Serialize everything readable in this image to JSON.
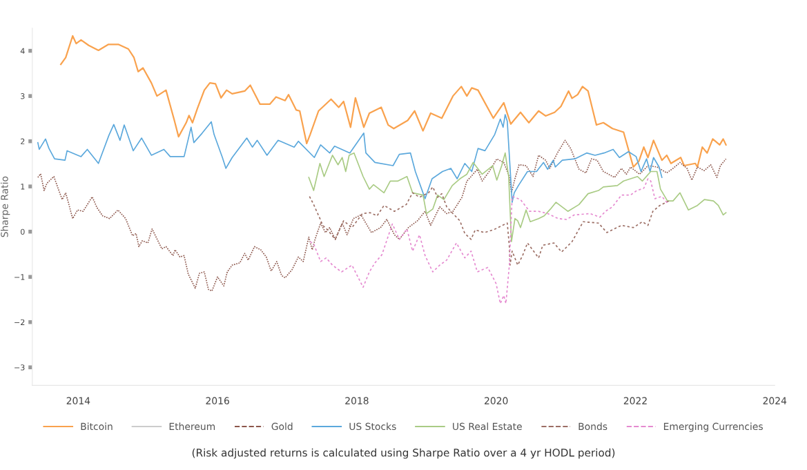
{
  "chart_data": {
    "type": "line",
    "ylabel": "Sharpe Ratio",
    "annotations": [
      "(Risk adjusted returns is calculated using Sharpe Ratio over a 4 yr HODL period)"
    ],
    "xlim": [
      2013.34,
      2024
    ],
    "xticks": [
      2014,
      2016,
      2018,
      2020,
      2022,
      2024
    ],
    "ylim": [
      -3.4,
      4.5
    ],
    "yticks": [
      {
        "value": -3,
        "label": "−3"
      },
      {
        "value": -2,
        "label": "−2"
      },
      {
        "value": -1,
        "label": "−1"
      },
      0,
      1,
      2,
      3,
      4
    ],
    "grid": false,
    "legend": "bottom",
    "marker": "none",
    "series": [
      {
        "name": "Bitcoin",
        "color": "#f9a24e",
        "line_style": "solid",
        "x": [
          2013.75,
          2013.82,
          2013.92,
          2013.97,
          2014.04,
          2014.15,
          2014.29,
          2014.43,
          2014.58,
          2014.72,
          2014.8,
          2014.86,
          2014.93,
          2015.05,
          2015.13,
          2015.26,
          2015.38,
          2015.44,
          2015.55,
          2015.59,
          2015.64,
          2015.71,
          2015.81,
          2015.89,
          2015.97,
          2016.05,
          2016.13,
          2016.21,
          2016.39,
          2016.47,
          2016.61,
          2016.75,
          2016.84,
          2016.97,
          2017.02,
          2017.13,
          2017.18,
          2017.28,
          2017.33,
          2017.45,
          2017.63,
          2017.74,
          2017.81,
          2017.91,
          2017.98,
          2018.1,
          2018.18,
          2018.35,
          2018.45,
          2018.53,
          2018.73,
          2018.83,
          2018.95,
          2019.06,
          2019.22,
          2019.38,
          2019.5,
          2019.58,
          2019.65,
          2019.74,
          2019.96,
          2020.11,
          2020.21,
          2020.35,
          2020.47,
          2020.61,
          2020.71,
          2020.84,
          2020.93,
          2021.04,
          2021.09,
          2021.17,
          2021.24,
          2021.32,
          2021.44,
          2021.54,
          2021.67,
          2021.83,
          2021.97,
          2022.05,
          2022.12,
          2022.18,
          2022.26,
          2022.38,
          2022.45,
          2022.51,
          2022.65,
          2022.7,
          2022.86,
          2022.89,
          2022.96,
          2023.03,
          2023.11,
          2023.21,
          2023.26,
          2023.3
        ],
        "values": [
          3.7,
          3.85,
          4.33,
          4.16,
          4.24,
          4.12,
          4.01,
          4.14,
          4.14,
          4.04,
          3.85,
          3.54,
          3.62,
          3.29,
          3.0,
          3.13,
          2.46,
          2.1,
          2.41,
          2.57,
          2.41,
          2.72,
          3.13,
          3.29,
          3.27,
          2.96,
          3.13,
          3.05,
          3.11,
          3.24,
          2.82,
          2.82,
          2.98,
          2.9,
          3.03,
          2.69,
          2.67,
          1.95,
          2.15,
          2.67,
          2.93,
          2.75,
          2.88,
          2.31,
          2.96,
          2.31,
          2.62,
          2.75,
          2.36,
          2.28,
          2.46,
          2.67,
          2.23,
          2.62,
          2.51,
          3.0,
          3.21,
          3.0,
          3.18,
          3.13,
          2.51,
          2.85,
          2.38,
          2.64,
          2.41,
          2.67,
          2.56,
          2.64,
          2.77,
          3.11,
          2.95,
          3.03,
          3.21,
          3.11,
          2.36,
          2.41,
          2.28,
          2.2,
          1.43,
          1.56,
          1.87,
          1.64,
          2.02,
          1.58,
          1.69,
          1.51,
          1.64,
          1.46,
          1.51,
          1.43,
          1.87,
          1.74,
          2.05,
          1.92,
          2.05,
          1.92
        ]
      },
      {
        "name": "Ethereum",
        "color": "#cccccc",
        "line_style": "solid"
      },
      {
        "name": "Gold",
        "color": "#8c564b",
        "line_style": "dotted",
        "x": [
          2013.42,
          2013.46,
          2013.51,
          2013.55,
          2013.65,
          2013.71,
          2013.77,
          2013.82,
          2013.92,
          2013.99,
          2014.07,
          2014.2,
          2014.27,
          2014.35,
          2014.45,
          2014.57,
          2014.68,
          2014.78,
          2014.83,
          2014.87,
          2014.92,
          2015.0,
          2015.06,
          2015.2,
          2015.26,
          2015.36,
          2015.39,
          2015.46,
          2015.52,
          2015.58,
          2015.68,
          2015.74,
          2015.81,
          2015.87,
          2015.92,
          2016.0,
          2016.09,
          2016.14,
          2016.21,
          2016.32,
          2016.39,
          2016.44,
          2016.53,
          2016.62,
          2016.7,
          2016.77,
          2016.85,
          2016.92,
          2016.97,
          2017.07,
          2017.16,
          2017.23,
          2017.31,
          2017.36,
          2017.4,
          2017.48,
          2017.55,
          2017.61,
          2017.69,
          2017.79,
          2017.86,
          2017.95,
          2018.06,
          2018.21,
          2018.34,
          2018.43,
          2018.54,
          2018.61,
          2018.74,
          2018.87,
          2018.98,
          2019.06,
          2019.19,
          2019.29,
          2019.38,
          2019.51,
          2019.58,
          2019.64,
          2019.73,
          2019.8,
          2019.9,
          2020.01,
          2020.11,
          2020.19,
          2020.22,
          2020.27,
          2020.33,
          2020.43,
          2020.53,
          2020.61,
          2020.71,
          2020.77,
          2020.88,
          2020.99,
          2021.07,
          2021.19,
          2021.29,
          2021.37,
          2021.45,
          2021.54,
          2021.7,
          2021.8,
          2021.87,
          2021.93,
          2022.06,
          2022.18,
          2022.31,
          2022.45,
          2022.54,
          2022.64,
          2022.74,
          2022.81,
          2022.89,
          2022.99,
          2023.08,
          2023.17,
          2023.22,
          2023.3
        ],
        "values": [
          1.2,
          1.28,
          0.91,
          1.07,
          1.22,
          0.96,
          0.71,
          0.86,
          0.29,
          0.48,
          0.45,
          0.77,
          0.53,
          0.35,
          0.29,
          0.48,
          0.29,
          -0.09,
          -0.04,
          -0.33,
          -0.2,
          -0.25,
          0.06,
          -0.38,
          -0.33,
          -0.53,
          -0.4,
          -0.56,
          -0.53,
          -0.94,
          -1.25,
          -0.92,
          -0.89,
          -1.28,
          -1.31,
          -1.0,
          -1.2,
          -0.89,
          -0.74,
          -0.69,
          -0.48,
          -0.63,
          -0.33,
          -0.4,
          -0.56,
          -0.87,
          -0.66,
          -0.97,
          -1.02,
          -0.84,
          -0.56,
          -0.66,
          -0.12,
          -0.4,
          -0.17,
          0.19,
          -0.02,
          0.09,
          -0.17,
          0.19,
          -0.07,
          0.29,
          0.37,
          -0.02,
          0.09,
          0.27,
          -0.07,
          -0.17,
          0.09,
          0.24,
          0.45,
          0.14,
          0.55,
          0.4,
          0.45,
          0.76,
          1.12,
          1.22,
          1.38,
          1.12,
          1.33,
          1.61,
          1.53,
          1.22,
          0.86,
          1.17,
          1.48,
          1.46,
          1.22,
          1.69,
          1.58,
          1.4,
          1.74,
          2.02,
          1.84,
          1.38,
          1.3,
          1.61,
          1.58,
          1.33,
          1.2,
          1.4,
          1.27,
          1.43,
          1.27,
          1.46,
          1.43,
          1.3,
          1.4,
          1.53,
          1.4,
          1.14,
          1.43,
          1.35,
          1.48,
          1.2,
          1.46,
          1.61
        ]
      },
      {
        "name": "US Stocks",
        "color": "#5ba8dc",
        "line_style": "solid",
        "x": [
          2013.42,
          2013.44,
          2013.53,
          2013.58,
          2013.66,
          2013.81,
          2013.84,
          2014.04,
          2014.13,
          2014.29,
          2014.44,
          2014.51,
          2014.6,
          2014.66,
          2014.79,
          2014.91,
          2015.05,
          2015.23,
          2015.32,
          2015.52,
          2015.62,
          2015.66,
          2015.78,
          2015.91,
          2015.95,
          2016.07,
          2016.12,
          2016.21,
          2016.42,
          2016.5,
          2016.57,
          2016.71,
          2016.87,
          2017.1,
          2017.16,
          2017.39,
          2017.48,
          2017.61,
          2017.68,
          2017.9,
          2018.1,
          2018.13,
          2018.26,
          2018.52,
          2018.61,
          2018.77,
          2018.84,
          2018.98,
          2019.08,
          2019.23,
          2019.35,
          2019.44,
          2019.55,
          2019.65,
          2019.74,
          2019.84,
          2019.98,
          2020.06,
          2020.1,
          2020.13,
          2020.16,
          2020.23,
          2020.26,
          2020.32,
          2020.45,
          2020.58,
          2020.68,
          2020.74,
          2020.82,
          2020.85,
          2020.95,
          2021.13,
          2021.3,
          2021.42,
          2021.55,
          2021.68,
          2021.77,
          2021.9,
          2022.01,
          2022.08,
          2022.16,
          2022.21,
          2022.26,
          2022.34,
          2022.38
        ],
        "values": [
          1.97,
          1.82,
          2.05,
          1.84,
          1.61,
          1.58,
          1.79,
          1.66,
          1.82,
          1.51,
          2.13,
          2.37,
          2.02,
          2.36,
          1.79,
          2.07,
          1.69,
          1.82,
          1.66,
          1.66,
          2.31,
          1.97,
          2.18,
          2.43,
          2.15,
          1.64,
          1.4,
          1.64,
          2.07,
          1.87,
          2.02,
          1.69,
          2.02,
          1.87,
          2.0,
          1.64,
          1.92,
          1.74,
          1.89,
          1.74,
          2.18,
          1.74,
          1.53,
          1.46,
          1.71,
          1.74,
          1.33,
          0.73,
          1.17,
          1.33,
          1.4,
          1.17,
          1.51,
          1.33,
          1.84,
          1.79,
          2.15,
          2.49,
          2.31,
          2.59,
          2.44,
          0.65,
          0.86,
          1.02,
          1.33,
          1.33,
          1.53,
          1.38,
          1.58,
          1.43,
          1.58,
          1.61,
          1.74,
          1.69,
          1.74,
          1.82,
          1.64,
          1.77,
          1.66,
          1.33,
          1.61,
          1.33,
          1.64,
          1.43,
          1.2
        ]
      },
      {
        "name": "US Real Estate",
        "color": "#a9cb84",
        "line_style": "solid",
        "x": [
          2017.31,
          2017.38,
          2017.47,
          2017.53,
          2017.65,
          2017.73,
          2017.79,
          2017.84,
          2017.89,
          2017.96,
          2018.09,
          2018.18,
          2018.24,
          2018.39,
          2018.48,
          2018.59,
          2018.72,
          2018.8,
          2018.95,
          2019.0,
          2019.09,
          2019.16,
          2019.25,
          2019.37,
          2019.48,
          2019.58,
          2019.67,
          2019.8,
          2019.95,
          2020.01,
          2020.08,
          2020.13,
          2020.18,
          2020.22,
          2020.27,
          2020.31,
          2020.35,
          2020.43,
          2020.49,
          2020.61,
          2020.69,
          2020.78,
          2020.86,
          2021.03,
          2021.19,
          2021.32,
          2021.47,
          2021.54,
          2021.74,
          2021.83,
          2022.03,
          2022.1,
          2022.22,
          2022.31,
          2022.36,
          2022.46,
          2022.54,
          2022.64,
          2022.76,
          2022.89,
          2022.99,
          2023.12,
          2023.19,
          2023.26,
          2023.3
        ],
        "values": [
          1.2,
          0.91,
          1.51,
          1.22,
          1.69,
          1.48,
          1.64,
          1.33,
          1.69,
          1.74,
          1.22,
          0.94,
          1.04,
          0.86,
          1.12,
          1.12,
          1.22,
          0.86,
          0.81,
          0.4,
          0.5,
          0.81,
          0.71,
          1.02,
          1.17,
          1.27,
          1.53,
          1.27,
          1.46,
          1.14,
          1.46,
          1.74,
          1.22,
          -0.22,
          0.29,
          0.24,
          0.09,
          0.48,
          0.22,
          0.29,
          0.35,
          0.5,
          0.65,
          0.45,
          0.6,
          0.84,
          0.91,
          0.99,
          1.02,
          1.12,
          1.22,
          1.12,
          1.33,
          1.33,
          0.94,
          0.68,
          0.68,
          0.86,
          0.48,
          0.58,
          0.71,
          0.68,
          0.58,
          0.37,
          0.42
        ]
      },
      {
        "name": "Bonds",
        "color": "#9c6e64",
        "line_style": "dashed",
        "x": [
          2017.32,
          2017.38,
          2017.47,
          2017.51,
          2017.58,
          2017.69,
          2017.81,
          2017.93,
          2018.08,
          2018.19,
          2018.29,
          2018.39,
          2018.54,
          2018.71,
          2018.8,
          2018.9,
          2019.03,
          2019.09,
          2019.16,
          2019.22,
          2019.29,
          2019.38,
          2019.48,
          2019.55,
          2019.64,
          2019.7,
          2019.83,
          2019.96,
          2020.09,
          2020.16,
          2020.19,
          2020.2,
          2020.23,
          2020.31,
          2020.38,
          2020.45,
          2020.61,
          2020.67,
          2020.83,
          2020.94,
          2021.09,
          2021.25,
          2021.47,
          2021.59,
          2021.8,
          2021.97,
          2022.1,
          2022.18,
          2022.25,
          2022.35,
          2022.48
        ],
        "values": [
          0.78,
          0.6,
          0.29,
          0.14,
          0.04,
          -0.17,
          0.24,
          0.09,
          0.4,
          0.42,
          0.35,
          0.58,
          0.45,
          0.6,
          0.86,
          0.76,
          0.86,
          0.99,
          0.76,
          0.84,
          0.55,
          0.4,
          0.24,
          -0.04,
          -0.17,
          0.04,
          -0.02,
          0.04,
          0.14,
          0.19,
          -0.33,
          -0.74,
          -0.43,
          -0.74,
          -0.53,
          -0.25,
          -0.58,
          -0.3,
          -0.25,
          -0.45,
          -0.22,
          0.22,
          0.19,
          -0.02,
          0.14,
          0.09,
          0.22,
          0.14,
          0.45,
          0.58,
          0.68
        ]
      },
      {
        "name": "Emerging Currencies",
        "color": "#e58ad0",
        "line_style": "dashed",
        "x": [
          2017.33,
          2017.38,
          2017.48,
          2017.56,
          2017.65,
          2017.78,
          2017.93,
          2018.09,
          2018.18,
          2018.26,
          2018.36,
          2018.51,
          2018.61,
          2018.72,
          2018.8,
          2018.9,
          2018.98,
          2019.09,
          2019.19,
          2019.29,
          2019.43,
          2019.55,
          2019.64,
          2019.73,
          2019.88,
          2020.0,
          2020.06,
          2020.11,
          2020.14,
          2020.19,
          2020.23,
          2020.35,
          2020.48,
          2020.61,
          2020.74,
          2020.89,
          2021.01,
          2021.12,
          2021.35,
          2021.49,
          2021.57,
          2021.67,
          2021.8,
          2021.93,
          2022.02,
          2022.12,
          2022.18,
          2022.22,
          2022.28,
          2022.38,
          2022.46
        ],
        "values": [
          -0.22,
          -0.27,
          -0.66,
          -0.58,
          -0.74,
          -0.89,
          -0.74,
          -1.23,
          -0.89,
          -0.69,
          -0.51,
          0.17,
          -0.17,
          0.06,
          -0.43,
          -0.07,
          -0.53,
          -0.89,
          -0.74,
          -0.63,
          -0.25,
          -0.58,
          -0.43,
          -0.89,
          -0.79,
          -1.15,
          -1.59,
          -1.41,
          -1.59,
          -0.74,
          0.78,
          0.71,
          0.45,
          0.45,
          0.4,
          0.29,
          0.27,
          0.37,
          0.4,
          0.32,
          0.45,
          0.55,
          0.81,
          0.81,
          0.91,
          0.96,
          1.17,
          1.12,
          0.73,
          0.78,
          0.63
        ]
      }
    ]
  }
}
